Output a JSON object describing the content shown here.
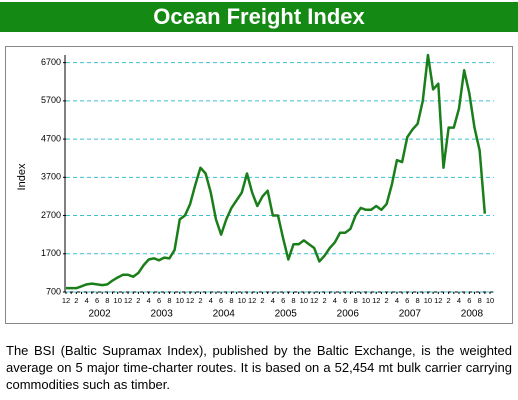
{
  "chart_data": {
    "type": "line",
    "title": "Ocean Freight Index",
    "y_label": "Index",
    "categories": [
      "12",
      null,
      "2",
      null,
      "4",
      null,
      "6",
      null,
      "8",
      null,
      "10",
      null,
      "12",
      null,
      "2",
      null,
      "4",
      null,
      "6",
      null,
      "8",
      null,
      "10",
      null,
      "12",
      null,
      "2",
      null,
      "4",
      null,
      "6",
      null,
      "8",
      null,
      "10",
      null,
      "12",
      null,
      "2",
      null,
      "4",
      null,
      "6",
      null,
      "8",
      null,
      "10",
      null,
      "12",
      null,
      "2",
      null,
      "4",
      null,
      "6",
      null,
      "8",
      null,
      "10",
      null,
      "12",
      null,
      "2",
      null,
      "4",
      null,
      "6",
      null,
      "8",
      null,
      "10",
      null,
      "12",
      null,
      "2",
      null,
      "4",
      null,
      "6",
      null,
      "8",
      null,
      "10"
    ],
    "years": [
      "2002",
      "2003",
      "2004",
      "2005",
      "2006",
      "2007",
      "2008"
    ],
    "series": [
      {
        "name": "BSI",
        "color": "#1a7f1a",
        "values": [
          800,
          800,
          800,
          850,
          900,
          920,
          900,
          880,
          900,
          1000,
          1080,
          1150,
          1150,
          1100,
          1200,
          1400,
          1550,
          1580,
          1530,
          1600,
          1580,
          1800,
          2600,
          2700,
          3000,
          3500,
          3950,
          3800,
          3300,
          2600,
          2200,
          2600,
          2900,
          3100,
          3300,
          3800,
          3300,
          2950,
          3200,
          3350,
          2700,
          2700,
          2100,
          1550,
          1950,
          1950,
          2050,
          1950,
          1850,
          1500,
          1650,
          1850,
          2000,
          2250,
          2250,
          2350,
          2700,
          2900,
          2850,
          2850,
          2950,
          2850,
          3000,
          3500,
          4150,
          4100,
          4750,
          4950,
          5100,
          5700,
          6900,
          6000,
          6150,
          3950,
          5000,
          5000,
          5500,
          6500,
          5900,
          5000,
          4400,
          2750,
          null
        ]
      }
    ],
    "ylim": [
      700,
      6900
    ],
    "yticks": [
      700,
      1700,
      2700,
      3700,
      4700,
      5700,
      6700
    ],
    "grid": true
  },
  "caption": "The BSI (Baltic Supramax Index), published by the Baltic Exchange, is the weighted average on 5 major time-charter routes. It is based on a 52,454 mt bulk carrier carrying commodities such as timber."
}
